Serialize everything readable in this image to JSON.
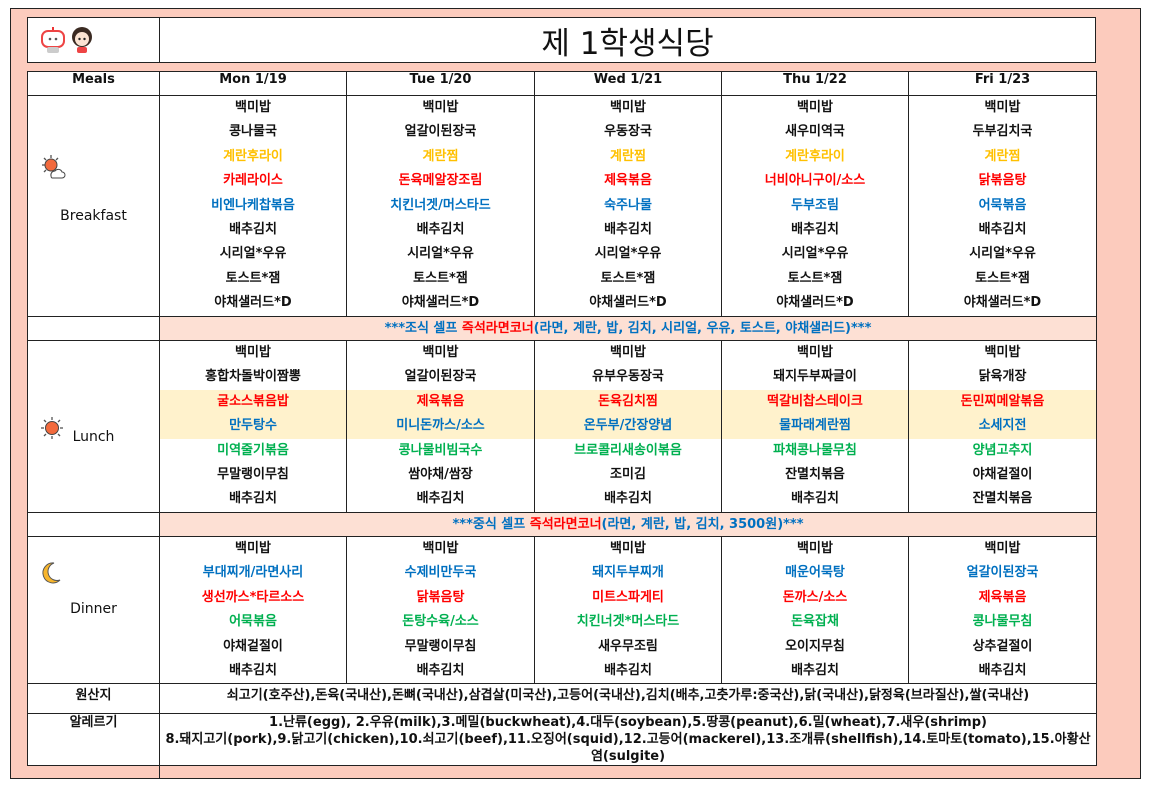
{
  "title": "제 1학생식당",
  "logo": {
    "icon": "mascot-characters-logo"
  },
  "header": {
    "meals_label": "Meals",
    "days": [
      "Mon 1/19",
      "Tue 1/20",
      "Wed 1/21",
      "Thu 1/22",
      "Fri 1/23"
    ]
  },
  "colors": {
    "black": "#111111",
    "yellow": "#ffc000",
    "red": "#ff0000",
    "blue": "#0070c0",
    "green": "#00b050",
    "frame": "#fccbbd",
    "banner": "#fde0d4",
    "highlight": "#fff2cc"
  },
  "meals": [
    {
      "label": "Breakfast",
      "icon": "sun-cloud-icon",
      "days": [
        [
          {
            "t": "백미밥",
            "c": "black"
          },
          {
            "t": "콩나물국",
            "c": "black"
          },
          {
            "t": "계란후라이",
            "c": "yellow"
          },
          {
            "t": "카레라이스",
            "c": "red"
          },
          {
            "t": "비엔나케찹볶음",
            "c": "blue"
          },
          {
            "t": "배추김치",
            "c": "black"
          },
          {
            "t": "시리얼*우유",
            "c": "black"
          },
          {
            "t": "토스트*잼",
            "c": "black"
          },
          {
            "t": "야채샐러드*D",
            "c": "black"
          }
        ],
        [
          {
            "t": "백미밥",
            "c": "black"
          },
          {
            "t": "얼갈이된장국",
            "c": "black"
          },
          {
            "t": "계란찜",
            "c": "yellow"
          },
          {
            "t": "돈육메알장조림",
            "c": "red"
          },
          {
            "t": "치킨너겟/머스타드",
            "c": "blue"
          },
          {
            "t": "배추김치",
            "c": "black"
          },
          {
            "t": "시리얼*우유",
            "c": "black"
          },
          {
            "t": "토스트*잼",
            "c": "black"
          },
          {
            "t": "야채샐러드*D",
            "c": "black"
          }
        ],
        [
          {
            "t": "백미밥",
            "c": "black"
          },
          {
            "t": "우동장국",
            "c": "black"
          },
          {
            "t": "계란찜",
            "c": "yellow"
          },
          {
            "t": "제육볶음",
            "c": "red"
          },
          {
            "t": "숙주나물",
            "c": "blue"
          },
          {
            "t": "배추김치",
            "c": "black"
          },
          {
            "t": "시리얼*우유",
            "c": "black"
          },
          {
            "t": "토스트*잼",
            "c": "black"
          },
          {
            "t": "야채샐러드*D",
            "c": "black"
          }
        ],
        [
          {
            "t": "백미밥",
            "c": "black"
          },
          {
            "t": "새우미역국",
            "c": "black"
          },
          {
            "t": "계란후라이",
            "c": "yellow"
          },
          {
            "t": "너비아니구이/소스",
            "c": "red"
          },
          {
            "t": "두부조림",
            "c": "blue"
          },
          {
            "t": "배추김치",
            "c": "black"
          },
          {
            "t": "시리얼*우유",
            "c": "black"
          },
          {
            "t": "토스트*잼",
            "c": "black"
          },
          {
            "t": "야채샐러드*D",
            "c": "black"
          }
        ],
        [
          {
            "t": "백미밥",
            "c": "black"
          },
          {
            "t": "두부김치국",
            "c": "black"
          },
          {
            "t": "계란찜",
            "c": "yellow"
          },
          {
            "t": "닭볶음탕",
            "c": "red"
          },
          {
            "t": "어묵볶음",
            "c": "blue"
          },
          {
            "t": "배추김치",
            "c": "black"
          },
          {
            "t": "시리얼*우유",
            "c": "black"
          },
          {
            "t": "토스트*잼",
            "c": "black"
          },
          {
            "t": "야채샐러드*D",
            "c": "black"
          }
        ]
      ],
      "banner": [
        {
          "t": "***조식 셀프 ",
          "c": "blue"
        },
        {
          "t": "즉석라면코너",
          "c": "red"
        },
        {
          "t": "(라면, 계란, 밥, 김치, 시리얼, 우유, 토스트, 야채샐러드)***",
          "c": "blue"
        }
      ]
    },
    {
      "label": "Lunch",
      "icon": "sun-icon",
      "days": [
        [
          {
            "t": "백미밥",
            "c": "black"
          },
          {
            "t": "홍합차돌박이짬뽕",
            "c": "black"
          },
          {
            "t": "굴소스볶음밥",
            "c": "red",
            "hl": true
          },
          {
            "t": "만두탕수",
            "c": "blue",
            "hl": true
          },
          {
            "t": "미역줄기볶음",
            "c": "green"
          },
          {
            "t": "무말랭이무침",
            "c": "black"
          },
          {
            "t": "배추김치",
            "c": "black"
          }
        ],
        [
          {
            "t": "백미밥",
            "c": "black"
          },
          {
            "t": "얼갈이된장국",
            "c": "black"
          },
          {
            "t": "제육볶음",
            "c": "red",
            "hl": true
          },
          {
            "t": "미니돈까스/소스",
            "c": "blue",
            "hl": true
          },
          {
            "t": "콩나물비빔국수",
            "c": "green"
          },
          {
            "t": "쌈야채/쌈장",
            "c": "black"
          },
          {
            "t": "배추김치",
            "c": "black"
          }
        ],
        [
          {
            "t": "백미밥",
            "c": "black"
          },
          {
            "t": "유부우동장국",
            "c": "black"
          },
          {
            "t": "돈육김치찜",
            "c": "red",
            "hl": true
          },
          {
            "t": "온두부/간장양념",
            "c": "blue",
            "hl": true
          },
          {
            "t": "브로콜리새송이볶음",
            "c": "green"
          },
          {
            "t": "조미김",
            "c": "black"
          },
          {
            "t": "배추김치",
            "c": "black"
          }
        ],
        [
          {
            "t": "백미밥",
            "c": "black"
          },
          {
            "t": "돼지두부짜글이",
            "c": "black"
          },
          {
            "t": "떡갈비찹스테이크",
            "c": "red",
            "hl": true
          },
          {
            "t": "물파래계란찜",
            "c": "blue",
            "hl": true
          },
          {
            "t": "파채콩나물무침",
            "c": "green"
          },
          {
            "t": "잔멸치볶음",
            "c": "black"
          },
          {
            "t": "배추김치",
            "c": "black"
          }
        ],
        [
          {
            "t": "백미밥",
            "c": "black"
          },
          {
            "t": "닭육개장",
            "c": "black"
          },
          {
            "t": "돈민찌메알볶음",
            "c": "red",
            "hl": true
          },
          {
            "t": "소세지전",
            "c": "blue",
            "hl": true
          },
          {
            "t": "양념고추지",
            "c": "green"
          },
          {
            "t": "야채겉절이",
            "c": "black"
          },
          {
            "t": "잔멸치볶음",
            "c": "black"
          }
        ]
      ],
      "banner": [
        {
          "t": "***중식 셀프 ",
          "c": "blue"
        },
        {
          "t": "즉석라면코너",
          "c": "red"
        },
        {
          "t": "(라면, 계란, 밥, 김치, 3500원)***",
          "c": "blue"
        }
      ]
    },
    {
      "label": "Dinner",
      "icon": "moon-icon",
      "days": [
        [
          {
            "t": "백미밥",
            "c": "black"
          },
          {
            "t": "부대찌개/라면사리",
            "c": "blue"
          },
          {
            "t": "생선까스*타르소스",
            "c": "red"
          },
          {
            "t": "어묵볶음",
            "c": "green"
          },
          {
            "t": "야채겉절이",
            "c": "black"
          },
          {
            "t": "배추김치",
            "c": "black"
          }
        ],
        [
          {
            "t": "백미밥",
            "c": "black"
          },
          {
            "t": "수제비만두국",
            "c": "blue"
          },
          {
            "t": "닭볶음탕",
            "c": "red"
          },
          {
            "t": "돈탕수육/소스",
            "c": "green"
          },
          {
            "t": "무말랭이무침",
            "c": "black"
          },
          {
            "t": "배추김치",
            "c": "black"
          }
        ],
        [
          {
            "t": "백미밥",
            "c": "black"
          },
          {
            "t": "돼지두부찌개",
            "c": "blue"
          },
          {
            "t": "미트스파게티",
            "c": "red"
          },
          {
            "t": "치킨너겟*머스타드",
            "c": "green"
          },
          {
            "t": "새우무조림",
            "c": "black"
          },
          {
            "t": "배추김치",
            "c": "black"
          }
        ],
        [
          {
            "t": "백미밥",
            "c": "black"
          },
          {
            "t": "매운어묵탕",
            "c": "blue"
          },
          {
            "t": "돈까스/소스",
            "c": "red"
          },
          {
            "t": "돈육잡채",
            "c": "green"
          },
          {
            "t": "오이지무침",
            "c": "black"
          },
          {
            "t": "배추김치",
            "c": "black"
          }
        ],
        [
          {
            "t": "백미밥",
            "c": "black"
          },
          {
            "t": "얼갈이된장국",
            "c": "blue"
          },
          {
            "t": "제육볶음",
            "c": "red"
          },
          {
            "t": "콩나물무침",
            "c": "green"
          },
          {
            "t": "상추겉절이",
            "c": "black"
          },
          {
            "t": "배추김치",
            "c": "black"
          }
        ]
      ]
    }
  ],
  "origin": {
    "label": "원산지",
    "text": "쇠고기(호주산),돈육(국내산),돈뼈(국내산),삼겹살(미국산),고등어(국내산),김치(배추,고춧가루:중국산),닭(국내산),닭정육(브라질산),쌀(국내산)"
  },
  "allergy": {
    "label": "알레르기",
    "line1": "1.난류(egg), 2.우유(milk),3.메밀(buckwheat),4.대두(soybean),5.땅콩(peanut),6.밀(wheat),7.새우(shrimp)",
    "line2": "8.돼지고기(pork),9.닭고기(chicken),10.쇠고기(beef),11.오징어(squid),12.고등어(mackerel),13.조개류(shellfish),14.토마토(tomato),15.아황산염(sulgite)"
  }
}
